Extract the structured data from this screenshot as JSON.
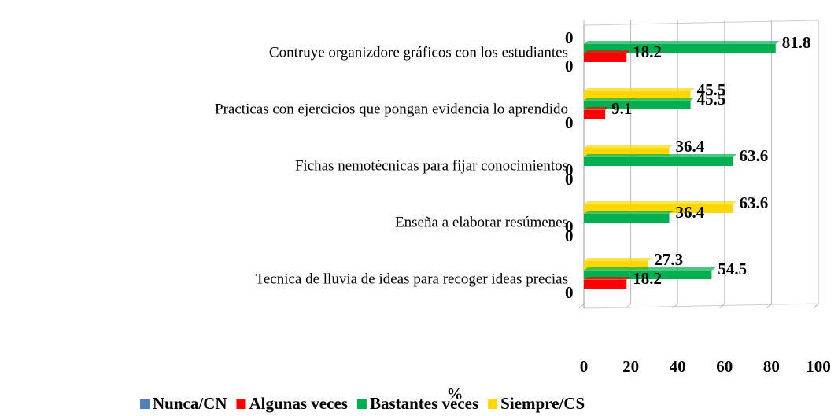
{
  "chart_data": {
    "type": "hbar",
    "categories": [
      "Contruye organizdore gráficos con los estudiantes",
      "Practicas con ejercicios que pongan evidencia lo aprendido",
      "Fichas nemotécnicas para fijar conocimientos",
      "Enseña a elaborar resúmenes",
      "Tecnica de lluvia de ideas para recoger ideas precias"
    ],
    "series": [
      {
        "name": "Nunca/CN",
        "color": "#4f81bd",
        "values": [
          0,
          0,
          0,
          0,
          0
        ]
      },
      {
        "name": "Algunas veces",
        "color": "#ff0000",
        "values": [
          18.2,
          9.1,
          0,
          0,
          18.2
        ]
      },
      {
        "name": "Bastantes veces",
        "color": "#00b050",
        "values": [
          81.8,
          45.5,
          63.6,
          36.4,
          54.5
        ]
      },
      {
        "name": "Siempre/CS",
        "color": "#ffd700",
        "values": [
          0,
          45.5,
          36.4,
          63.6,
          27.3
        ]
      }
    ],
    "xlabel": "%",
    "xlim": [
      0,
      100
    ],
    "xticks": [
      0,
      20,
      40,
      60,
      80,
      100
    ],
    "grid": true
  }
}
